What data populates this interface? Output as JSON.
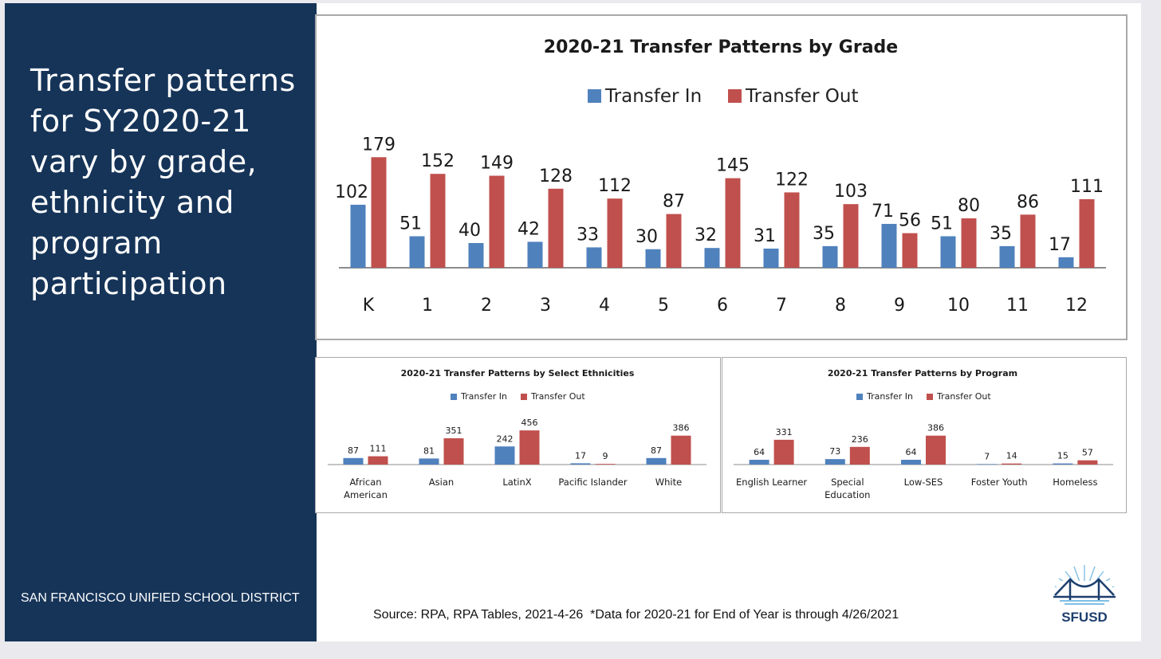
{
  "headline": "Transfer patterns for SY2020-21 vary by grade, ethnicity and program participation",
  "district": "SAN FRANCISCO UNIFIED SCHOOL DISTRICT",
  "source": "Source: RPA, RPA Tables, 2021-4-26  *Data for 2020-21 for End of Year is through 4/26/2021",
  "logo_text": "SFUSD",
  "colors": {
    "panel": "#163458",
    "transfer_in": "#4f81bd",
    "transfer_out": "#c0504d"
  },
  "chart_data": [
    {
      "type": "bar",
      "title": "2020-21 Transfer Patterns by Grade",
      "categories": [
        "K",
        "1",
        "2",
        "3",
        "4",
        "5",
        "6",
        "7",
        "8",
        "9",
        "10",
        "11",
        "12"
      ],
      "series": [
        {
          "name": "Transfer In",
          "values": [
            102,
            51,
            40,
            42,
            33,
            30,
            32,
            31,
            35,
            71,
            51,
            35,
            17
          ]
        },
        {
          "name": "Transfer Out",
          "values": [
            179,
            152,
            149,
            128,
            112,
            87,
            145,
            122,
            103,
            56,
            80,
            86,
            111
          ]
        }
      ],
      "legend": "top",
      "grid": false
    },
    {
      "type": "bar",
      "title": "2020-21 Transfer Patterns by Select Ethnicities",
      "categories": [
        [
          "African",
          "American"
        ],
        [
          "Asian"
        ],
        [
          "LatinX"
        ],
        [
          "Pacific Islander"
        ],
        [
          "White"
        ]
      ],
      "series": [
        {
          "name": "Transfer In",
          "values": [
            87,
            81,
            242,
            17,
            87
          ]
        },
        {
          "name": "Transfer Out",
          "values": [
            111,
            351,
            456,
            9,
            386
          ]
        }
      ],
      "legend": "top",
      "grid": false
    },
    {
      "type": "bar",
      "title": "2020-21 Transfer Patterns by Program",
      "categories": [
        [
          "English Learner"
        ],
        [
          "Special",
          "Education"
        ],
        [
          "Low-SES"
        ],
        [
          "Foster Youth"
        ],
        [
          "Homeless"
        ]
      ],
      "series": [
        {
          "name": "Transfer In",
          "values": [
            64,
            73,
            64,
            7,
            15
          ]
        },
        {
          "name": "Transfer Out",
          "values": [
            331,
            236,
            386,
            14,
            57
          ]
        }
      ],
      "legend": "top",
      "grid": false
    }
  ]
}
